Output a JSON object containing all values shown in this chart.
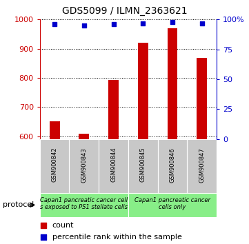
{
  "title": "GDS5099 / ILMN_2363621",
  "samples": [
    "GSM900842",
    "GSM900843",
    "GSM900844",
    "GSM900845",
    "GSM900846",
    "GSM900847"
  ],
  "counts": [
    652,
    608,
    793,
    921,
    969,
    868
  ],
  "percentile_ranks": [
    96,
    95,
    96,
    97,
    98,
    97
  ],
  "ylim_left": [
    590,
    1000
  ],
  "ylim_right": [
    0,
    100
  ],
  "yticks_left": [
    600,
    700,
    800,
    900,
    1000
  ],
  "yticks_right": [
    0,
    25,
    50,
    75,
    100
  ],
  "bar_color": "#cc0000",
  "dot_color": "#0000cc",
  "bar_width": 0.35,
  "group1_label_line1": "Capan1 pancreatic cancer cell",
  "group1_label_line2": "s exposed to PS1 stellate cells",
  "group2_label_line1": "Capan1 pancreatic cancer",
  "group2_label_line2": "cells only",
  "protocol_label": "protocol",
  "legend_count_label": "count",
  "legend_percentile_label": "percentile rank within the sample",
  "left_axis_color": "#cc0000",
  "right_axis_color": "#0000cc",
  "gray_color": "#c8c8c8",
  "green_color": "#88ee88",
  "title_fontsize": 10,
  "tick_fontsize": 8,
  "sample_fontsize": 6,
  "protocol_fontsize": 6,
  "legend_fontsize": 8
}
